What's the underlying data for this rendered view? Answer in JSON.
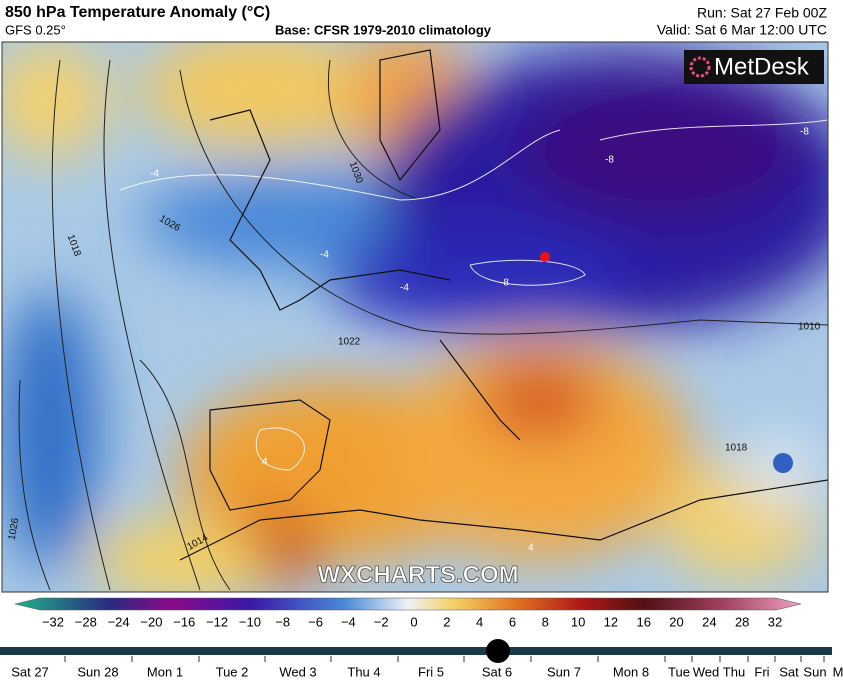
{
  "header": {
    "title": "850 hPa Temperature Anomaly (°C)",
    "model": "GFS 0.25°",
    "base": "Base: CFSR 1979-2010 climatology",
    "run": "Run: Sat 27 Feb 00Z",
    "valid": "Valid: Sat 6 Mar 12:00 UTC"
  },
  "map": {
    "logo": "MetDesk",
    "watermark": "WXCHARTS.COM",
    "labels": [
      "1030",
      "1026",
      "1022",
      "1018",
      "1014",
      "1010",
      "1018",
      "1026",
      "-4",
      "-4",
      "-4",
      "-8",
      "-8",
      "-8",
      "4",
      "4"
    ]
  },
  "colorbar": {
    "ticks": [
      "−32",
      "−28",
      "−24",
      "−20",
      "−16",
      "−12",
      "−10",
      "−8",
      "−6",
      "−4",
      "−2",
      "0",
      "2",
      "4",
      "6",
      "8",
      "10",
      "12",
      "16",
      "20",
      "24",
      "28",
      "32"
    ]
  },
  "timeline": {
    "labels": [
      "Sat 27",
      "Sun 28",
      "Mon 1",
      "Tue 2",
      "Wed 3",
      "Thu 4",
      "Fri 5",
      "Sat 6",
      "Sun 7",
      "Mon 8",
      "Tue",
      "Wed",
      "Thu",
      "Fri",
      "Sat",
      "Sun",
      "M"
    ]
  }
}
